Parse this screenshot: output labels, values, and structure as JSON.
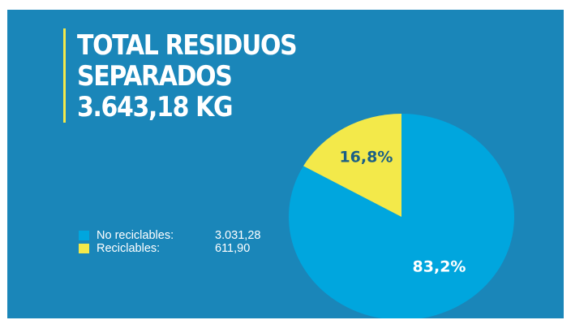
{
  "chart_data": {
    "type": "pie",
    "title": [
      "TOTAL RESIDUOS",
      "SEPARADOS"
    ],
    "total_label": "3.643,18 KG",
    "slices": [
      {
        "label": "No reciclables:",
        "value": 3031.28,
        "value_text": "3.031,28",
        "percent_text": "83,2%",
        "color": "#00a6de",
        "text_color": "#ffffff"
      },
      {
        "label": "Reciclables:",
        "value": 611.9,
        "value_text": "611,90",
        "percent_text": "16,8%",
        "color": "#f3e94a",
        "text_color": "#1b5f86"
      }
    ],
    "legend_position": "left"
  },
  "colors": {
    "background": "#1a86b9",
    "accent_bar": "#f3e94a"
  }
}
